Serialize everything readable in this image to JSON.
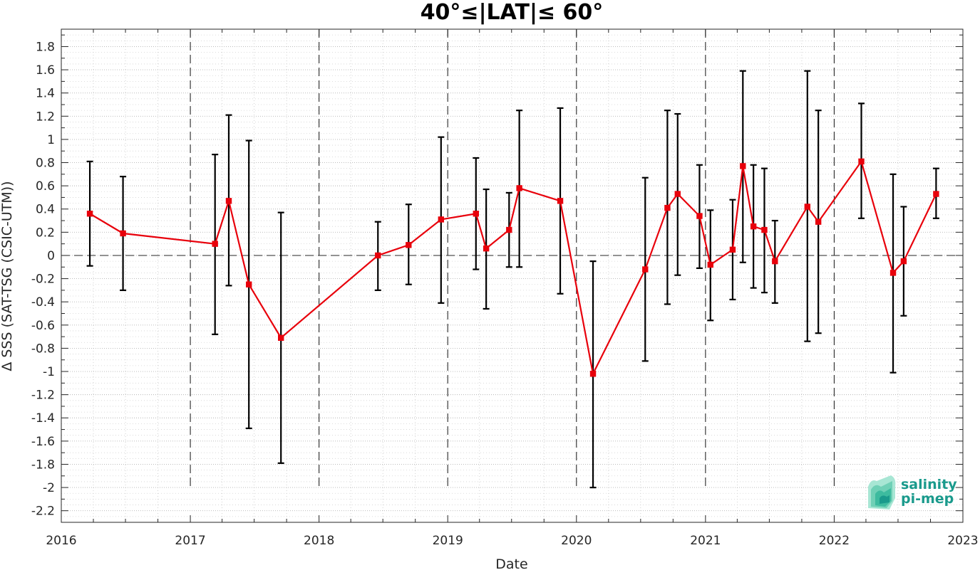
{
  "chart_data": {
    "type": "line",
    "title": "40°≤|LAT|≤ 60°",
    "xlabel": "Date",
    "ylabel": "Δ SSS (SAT-TSG (CSIC-UTM))",
    "xlim": [
      "2016-01-01",
      "2023-01-01"
    ],
    "ylim": [
      -2.3,
      1.95
    ],
    "x_ticks": [
      "2016",
      "2017",
      "2018",
      "2019",
      "2020",
      "2021",
      "2022",
      "2023"
    ],
    "y_ticks": [
      1.8,
      1.6,
      1.4,
      1.2,
      1,
      0.8,
      0.6,
      0.4,
      0.2,
      0,
      -0.2,
      -0.4,
      -0.6,
      -0.8,
      -1,
      -1.2,
      -1.4,
      -1.6,
      -1.8,
      -2,
      -2.2
    ],
    "grid": true,
    "year_separators": "dashed vertical lines at each year boundary",
    "zero_line": "dashed horizontal line at 0",
    "series": [
      {
        "color": "#e8000b",
        "marker": "square",
        "error_bar_color": "#000000",
        "points": [
          {
            "date": "2016-03-22",
            "value": 0.36,
            "low": -0.09,
            "high": 0.81
          },
          {
            "date": "2016-06-24",
            "value": 0.19,
            "low": -0.3,
            "high": 0.68
          },
          {
            "date": "2017-03-12",
            "value": 0.1,
            "low": -0.68,
            "high": 0.87
          },
          {
            "date": "2017-04-20",
            "value": 0.47,
            "low": -0.26,
            "high": 1.21
          },
          {
            "date": "2017-06-16",
            "value": -0.25,
            "low": -1.49,
            "high": 0.99
          },
          {
            "date": "2017-09-15",
            "value": -0.71,
            "low": -1.79,
            "high": 0.37
          },
          {
            "date": "2018-06-17",
            "value": 0.0,
            "low": -0.3,
            "high": 0.29
          },
          {
            "date": "2018-09-12",
            "value": 0.09,
            "low": -0.25,
            "high": 0.44
          },
          {
            "date": "2018-12-13",
            "value": 0.31,
            "low": -0.41,
            "high": 1.02
          },
          {
            "date": "2019-03-22",
            "value": 0.36,
            "low": -0.12,
            "high": 0.84
          },
          {
            "date": "2019-04-20",
            "value": 0.06,
            "low": -0.46,
            "high": 0.57
          },
          {
            "date": "2019-06-24",
            "value": 0.22,
            "low": -0.1,
            "high": 0.54
          },
          {
            "date": "2019-07-23",
            "value": 0.58,
            "low": -0.1,
            "high": 1.25
          },
          {
            "date": "2019-11-16",
            "value": 0.47,
            "low": -0.33,
            "high": 1.27
          },
          {
            "date": "2020-02-17",
            "value": -1.02,
            "low": -2.0,
            "high": -0.05
          },
          {
            "date": "2020-07-14",
            "value": -0.12,
            "low": -0.91,
            "high": 0.67
          },
          {
            "date": "2020-09-15",
            "value": 0.41,
            "low": -0.42,
            "high": 1.25
          },
          {
            "date": "2020-10-14",
            "value": 0.53,
            "low": -0.17,
            "high": 1.22
          },
          {
            "date": "2020-12-15",
            "value": 0.34,
            "low": -0.11,
            "high": 0.78
          },
          {
            "date": "2021-01-15",
            "value": -0.08,
            "low": -0.56,
            "high": 0.39
          },
          {
            "date": "2021-03-19",
            "value": 0.05,
            "low": -0.38,
            "high": 0.48
          },
          {
            "date": "2021-04-17",
            "value": 0.77,
            "low": -0.06,
            "high": 1.59
          },
          {
            "date": "2021-05-17",
            "value": 0.25,
            "low": -0.28,
            "high": 0.78
          },
          {
            "date": "2021-06-17",
            "value": 0.22,
            "low": -0.32,
            "high": 0.75
          },
          {
            "date": "2021-07-17",
            "value": -0.05,
            "low": -0.41,
            "high": 0.3
          },
          {
            "date": "2021-10-17",
            "value": 0.42,
            "low": -0.74,
            "high": 1.59
          },
          {
            "date": "2021-11-17",
            "value": 0.29,
            "low": -0.67,
            "high": 1.25
          },
          {
            "date": "2022-03-19",
            "value": 0.81,
            "low": 0.32,
            "high": 1.31
          },
          {
            "date": "2022-06-17",
            "value": -0.15,
            "low": -1.01,
            "high": 0.7
          },
          {
            "date": "2022-07-17",
            "value": -0.05,
            "low": -0.52,
            "high": 0.42
          },
          {
            "date": "2022-10-17",
            "value": 0.53,
            "low": 0.32,
            "high": 0.75
          }
        ]
      }
    ]
  },
  "logo": {
    "line1": "salinity",
    "line2": "pi-mep",
    "colors": [
      "#1a9a8c",
      "#6fd0b6"
    ]
  }
}
